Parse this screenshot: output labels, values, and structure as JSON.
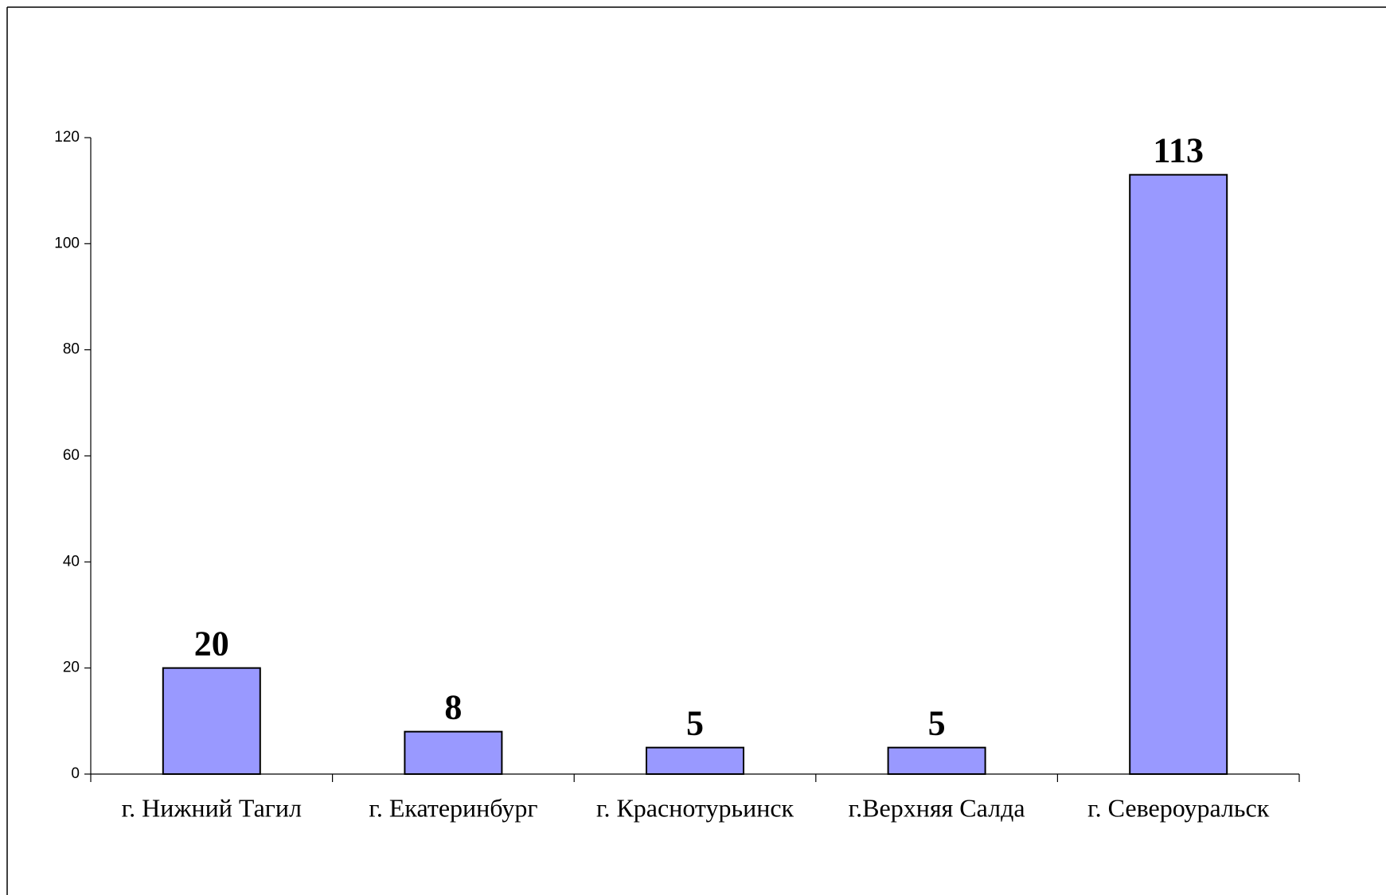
{
  "chart_data": {
    "type": "bar",
    "categories": [
      "г. Нижний Тагил",
      "г. Екатеринбург",
      "г. Краснотурьинск",
      "г.Верхняя Салда",
      "г. Североуральск"
    ],
    "values": [
      20,
      8,
      5,
      5,
      113
    ],
    "color": "#9999ff",
    "ylim": [
      0,
      120
    ],
    "yticks": [
      0,
      20,
      40,
      60,
      80,
      100,
      120
    ],
    "grid": false
  }
}
